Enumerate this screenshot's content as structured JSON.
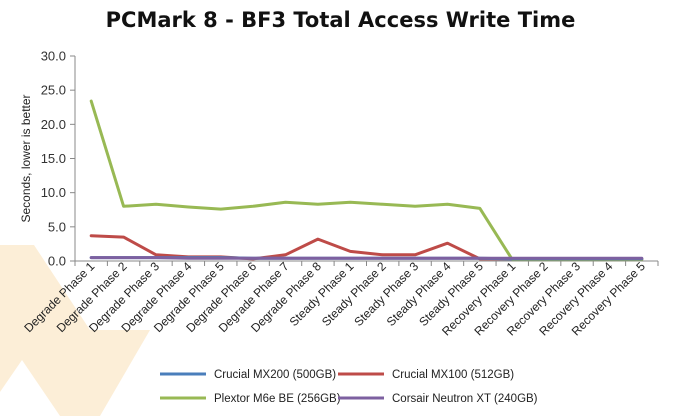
{
  "chart_data": {
    "type": "line",
    "title": "PCMark 8 - BF3 Total Access Write Time",
    "xlabel": "",
    "ylabel": "Seconds, lower is better",
    "ylim": [
      0,
      30
    ],
    "yticks": [
      "0.0",
      "5.0",
      "10.0",
      "15.0",
      "20.0",
      "25.0",
      "30.0"
    ],
    "grid": false,
    "legend_position": "bottom",
    "categories": [
      "Degrade Phase 1",
      "Degrade Phase 2",
      "Degrade Phase 3",
      "Degrade Phase 4",
      "Degrade Phase 5",
      "Degrade Phase 6",
      "Degrade Phase 7",
      "Degrade Phase 8",
      "Steady Phase 1",
      "Steady Phase 2",
      "Steady Phase 3",
      "Steady Phase 4",
      "Steady Phase 5",
      "Recovery Phase 1",
      "Recovery Phase 2",
      "Recovery Phase 3",
      "Recovery Phase 4",
      "Recovery Phase 5"
    ],
    "series": [
      {
        "name": "Crucial MX200 (500GB)",
        "color": "#4a7ebb",
        "values": [
          0.5,
          0.5,
          0.5,
          0.5,
          0.5,
          0.4,
          0.4,
          0.4,
          0.4,
          0.4,
          0.4,
          0.4,
          0.4,
          0.3,
          0.3,
          0.3,
          0.3,
          0.3
        ]
      },
      {
        "name": "Crucial MX100 (512GB)",
        "color": "#be4b48",
        "values": [
          3.7,
          3.5,
          0.9,
          0.6,
          0.6,
          0.3,
          0.9,
          3.2,
          1.4,
          0.9,
          0.9,
          2.6,
          0.3,
          0.3,
          0.3,
          0.3,
          0.3,
          0.3
        ]
      },
      {
        "name": "Plextor M6e BE (256GB)",
        "color": "#98b954",
        "values": [
          23.4,
          8.0,
          8.3,
          7.9,
          7.6,
          8.0,
          8.6,
          8.3,
          8.6,
          8.3,
          8.0,
          8.3,
          7.7,
          0.2,
          0.2,
          0.2,
          0.2,
          0.2
        ]
      },
      {
        "name": "Corsair Neutron XT (240GB)",
        "color": "#7d60a0",
        "values": [
          0.5,
          0.5,
          0.5,
          0.4,
          0.4,
          0.4,
          0.4,
          0.4,
          0.4,
          0.4,
          0.4,
          0.4,
          0.4,
          0.4,
          0.4,
          0.4,
          0.4,
          0.4
        ]
      }
    ]
  }
}
